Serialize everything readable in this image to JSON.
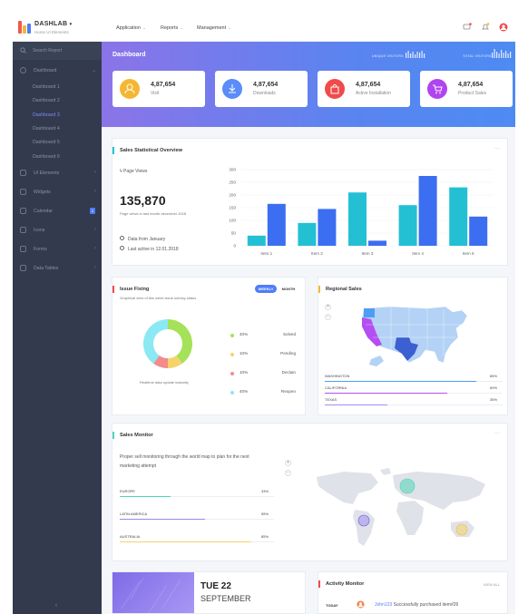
{
  "app": {
    "brand": "DASHLAB",
    "brand_sub": "Home UI Elements"
  },
  "nav": [
    {
      "label": "Application"
    },
    {
      "label": "Reports"
    },
    {
      "label": "Management"
    }
  ],
  "sidebar": {
    "search_placeholder": "Search Report",
    "dashboard": {
      "label": "Dashboard",
      "items": [
        "Dashboard 1",
        "Dashboard 2",
        "Dashboard 3",
        "Dashboard 4",
        "Dashboard 5",
        "Dashboard 6"
      ],
      "active_index": 2
    },
    "items": [
      {
        "label": "UI Elements",
        "icon": "layers-icon"
      },
      {
        "label": "Widgets",
        "icon": "widgets-icon"
      },
      {
        "label": "Calendar",
        "icon": "calendar-icon",
        "badge": "2"
      },
      {
        "label": "Icons",
        "icon": "icons-icon"
      },
      {
        "label": "Forms",
        "icon": "forms-icon"
      },
      {
        "label": "Data Tables",
        "icon": "table-icon"
      }
    ]
  },
  "hero": {
    "title": "Dashboard",
    "unique_visitors_label": "UNIQUE VISITORS",
    "total_visitors_label": "TOTAL VISITORS"
  },
  "stats": [
    {
      "value": "4,87,654",
      "label": "Visit",
      "color": "#f5b733",
      "icon": "user-icon"
    },
    {
      "value": "4,87,654",
      "label": "Downloads",
      "color": "#5b8cf7",
      "icon": "download-icon"
    },
    {
      "value": "4,87,654",
      "label": "Active Installation",
      "color": "#f04b4b",
      "icon": "bag-icon"
    },
    {
      "value": "4,87,654",
      "label": "Product Sales",
      "color": "#b044f0",
      "icon": "cart-icon"
    }
  ],
  "sales_overview": {
    "title": "Sales Statistical Overview",
    "page_views_label": "Page Views",
    "big_value": "135,870",
    "sub_text": "Page views in last month december 2018",
    "data_from": "Data from January",
    "last_active": "Last active in 12.01.2018"
  },
  "chart_data": {
    "type": "bar",
    "categories": [
      "Item 1",
      "Item 2",
      "Item 3",
      "Item 4",
      "Item 5"
    ],
    "series": [
      {
        "name": "",
        "values": [
          40,
          90,
          210,
          160,
          230
        ],
        "color": "#23c0d4"
      },
      {
        "name": "",
        "values": [
          165,
          145,
          20,
          275,
          115
        ],
        "color": "#3c6ef2"
      }
    ],
    "ylim": [
      0,
      300
    ],
    "yticks": [
      0,
      50,
      100,
      150,
      200,
      250,
      300
    ],
    "grid": true
  },
  "issue_fixing": {
    "title": "Issue Fixing",
    "subtitle": "Graphical view of this week issue solving status",
    "tabs": [
      "WEEKLY",
      "MONTH"
    ],
    "caption": "Realtime data update instantly",
    "legend": [
      {
        "pct": "40%",
        "label": "Solved",
        "color": "#a6e15a",
        "value": 40
      },
      {
        "pct": "10%",
        "label": "Pending",
        "color": "#f5d36b",
        "value": 10
      },
      {
        "pct": "10%",
        "label": "Declain",
        "color": "#f28b8b",
        "value": 10
      },
      {
        "pct": "40%",
        "label": "Reopen",
        "color": "#8ae9f2",
        "value": 40
      }
    ]
  },
  "regional_sales": {
    "title": "Regional Sales",
    "rows": [
      {
        "label": "WASHINGTON",
        "pct": "85%",
        "value": 85,
        "color": "#4f9df2"
      },
      {
        "label": "CALIFORNIA",
        "pct": "69%",
        "value": 69,
        "color": "#b44ef2"
      },
      {
        "label": "TEXAS",
        "pct": "35%",
        "value": 35,
        "color": "#a58cf2"
      }
    ]
  },
  "sales_monitor": {
    "title": "Sales Monitor",
    "text": "Proper sell monitoring through the world map to plan for the next marketing attempt",
    "rows": [
      {
        "label": "EUROPE",
        "pct": "33%",
        "value": 33,
        "color": "#4fd6b8"
      },
      {
        "label": "LATIN AMERICA",
        "pct": "55%",
        "value": 55,
        "color": "#9a86f2"
      },
      {
        "label": "AUSTRALIA",
        "pct": "85%",
        "value": 85,
        "color": "#f5d36b"
      }
    ]
  },
  "date_card": {
    "day": "TUE 22",
    "month": "SEPTEMBER"
  },
  "activity": {
    "title": "Activity Monitor",
    "view_all": "VIEW ALL",
    "today": "TODAY",
    "user": "John123",
    "action": "Successfully purchased item#26"
  }
}
